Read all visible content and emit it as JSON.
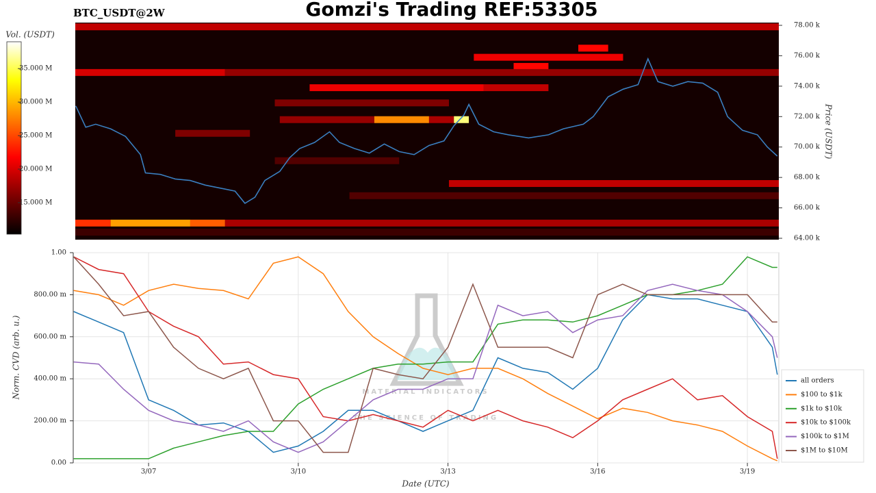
{
  "chart_data": [
    {
      "type": "heatmap",
      "title": "Gomzi's Trading REF:53305",
      "subtitle": "BTC_USDT@2W",
      "ylabel": "Price (USDT)",
      "colorbar_label": "Vol. (USDT)",
      "colormap": "hot",
      "xlim": [
        5.49,
        19.63
      ],
      "ylim": [
        63910,
        78180
      ],
      "yticks": [
        {
          "value": 64000,
          "label": "64.00 k"
        },
        {
          "value": 66000,
          "label": "66.00 k"
        },
        {
          "value": 68000,
          "label": "68.00 k"
        },
        {
          "value": 70000,
          "label": "70.00 k"
        },
        {
          "value": 72000,
          "label": "72.00 k"
        },
        {
          "value": 74000,
          "label": "74.00 k"
        },
        {
          "value": 76000,
          "label": "76.00 k"
        },
        {
          "value": 78000,
          "label": "78.00 k"
        }
      ],
      "clim": [
        10300000,
        39000000
      ],
      "cticks": [
        {
          "value": 15000000,
          "label": "15.000 M"
        },
        {
          "value": 20000000,
          "label": "20.000 M"
        },
        {
          "value": 25000000,
          "label": "25.000 M"
        },
        {
          "value": 30000000,
          "label": "30.000 M"
        },
        {
          "value": 35000000,
          "label": "35.000 M"
        }
      ],
      "bands": [
        {
          "price": 77900,
          "x0": 5.49,
          "x1": 19.63,
          "volume": 19000000
        },
        {
          "price": 76500,
          "x0": 15.6,
          "x1": 16.2,
          "volume": 22000000
        },
        {
          "price": 75900,
          "x0": 13.5,
          "x1": 16.5,
          "volume": 21000000
        },
        {
          "price": 75300,
          "x0": 14.3,
          "x1": 15.0,
          "volume": 22000000
        },
        {
          "price": 74900,
          "x0": 5.49,
          "x1": 8.5,
          "volume": 20000000
        },
        {
          "price": 74900,
          "x0": 8.5,
          "x1": 19.63,
          "volume": 17000000
        },
        {
          "price": 73900,
          "x0": 10.2,
          "x1": 13.7,
          "volume": 21000000
        },
        {
          "price": 73900,
          "x0": 13.7,
          "x1": 15.0,
          "volume": 19000000
        },
        {
          "price": 72900,
          "x0": 9.5,
          "x1": 13.0,
          "volume": 16000000
        },
        {
          "price": 71800,
          "x0": 9.6,
          "x1": 11.5,
          "volume": 17000000
        },
        {
          "price": 71800,
          "x0": 11.5,
          "x1": 12.6,
          "volume": 28000000
        },
        {
          "price": 71800,
          "x0": 12.6,
          "x1": 13.1,
          "volume": 18000000
        },
        {
          "price": 71800,
          "x0": 13.1,
          "x1": 13.4,
          "volume": 36000000
        },
        {
          "price": 70900,
          "x0": 7.5,
          "x1": 9.0,
          "volume": 16000000
        },
        {
          "price": 69100,
          "x0": 9.5,
          "x1": 12.0,
          "volume": 14000000
        },
        {
          "price": 67600,
          "x0": 13.0,
          "x1": 19.63,
          "volume": 19000000
        },
        {
          "price": 66800,
          "x0": 11.0,
          "x1": 19.63,
          "volume": 14000000
        },
        {
          "price": 65000,
          "x0": 5.49,
          "x1": 6.2,
          "volume": 24000000
        },
        {
          "price": 65000,
          "x0": 6.2,
          "x1": 7.8,
          "volume": 29000000
        },
        {
          "price": 65000,
          "x0": 7.8,
          "x1": 8.5,
          "volume": 26000000
        },
        {
          "price": 65000,
          "x0": 8.5,
          "x1": 19.63,
          "volume": 18000000
        },
        {
          "price": 64400,
          "x0": 5.49,
          "x1": 19.63,
          "volume": 13000000
        }
      ],
      "price": {
        "color": "#3a7fc0",
        "x": [
          5.5,
          5.7,
          5.9,
          6.2,
          6.5,
          6.8,
          6.9,
          7.2,
          7.5,
          7.8,
          8.1,
          8.4,
          8.7,
          8.9,
          9.1,
          9.3,
          9.6,
          9.8,
          10.0,
          10.3,
          10.6,
          10.8,
          11.1,
          11.4,
          11.7,
          12.0,
          12.3,
          12.6,
          12.9,
          13.1,
          13.3,
          13.4,
          13.6,
          13.9,
          14.2,
          14.6,
          15.0,
          15.3,
          15.7,
          15.9,
          16.2,
          16.5,
          16.8,
          17.0,
          17.2,
          17.5,
          17.8,
          18.1,
          18.4,
          18.6,
          18.9,
          19.2,
          19.4,
          19.6
        ],
        "values": [
          72700,
          71300,
          71500,
          71200,
          70700,
          69500,
          68300,
          68200,
          67900,
          67800,
          67500,
          67300,
          67100,
          66300,
          66700,
          67800,
          68400,
          69300,
          69900,
          70300,
          71000,
          70300,
          69900,
          69600,
          70200,
          69700,
          69500,
          70100,
          70400,
          71400,
          72100,
          72800,
          71500,
          71000,
          70800,
          70600,
          70800,
          71200,
          71500,
          72000,
          73300,
          73800,
          74100,
          75800,
          74300,
          74000,
          74300,
          74200,
          73600,
          72000,
          71100,
          70800,
          70000,
          69400
        ]
      }
    },
    {
      "type": "line",
      "xlabel": "Date (UTC)",
      "ylabel": "Norm. CVD (arb. u.)",
      "xlim": [
        5.49,
        19.63
      ],
      "ylim": [
        0,
        1.0
      ],
      "xticks": [
        {
          "value": 7,
          "label": "3/07"
        },
        {
          "value": 10,
          "label": "3/10"
        },
        {
          "value": 13,
          "label": "3/13"
        },
        {
          "value": 16,
          "label": "3/16"
        },
        {
          "value": 19,
          "label": "3/19"
        }
      ],
      "yticks": [
        {
          "value": 0,
          "label": "0.00"
        },
        {
          "value": 0.2,
          "label": "200.00 m"
        },
        {
          "value": 0.4,
          "label": "400.00 m"
        },
        {
          "value": 0.6,
          "label": "600.00 m"
        },
        {
          "value": 0.8,
          "label": "800.00 m"
        },
        {
          "value": 1.0,
          "label": "1.00"
        }
      ],
      "grid": true,
      "legend": "right",
      "annotations": [
        "MATERIAL INDICATORS",
        "THE SCIENCE OF TRADING"
      ],
      "x": [
        5.5,
        6.0,
        6.5,
        7.0,
        7.5,
        8.0,
        8.5,
        9.0,
        9.5,
        10.0,
        10.5,
        11.0,
        11.5,
        12.0,
        12.5,
        13.0,
        13.5,
        14.0,
        14.5,
        15.0,
        15.5,
        16.0,
        16.5,
        17.0,
        17.5,
        18.0,
        18.5,
        19.0,
        19.5,
        19.6
      ],
      "series": [
        {
          "name": "all orders",
          "color": "#1f77b4",
          "values": [
            0.72,
            0.67,
            0.62,
            0.3,
            0.25,
            0.18,
            0.19,
            0.15,
            0.05,
            0.08,
            0.15,
            0.25,
            0.25,
            0.2,
            0.15,
            0.2,
            0.25,
            0.5,
            0.45,
            0.43,
            0.35,
            0.45,
            0.68,
            0.8,
            0.78,
            0.78,
            0.75,
            0.72,
            0.55,
            0.42
          ]
        },
        {
          "name": "$100 to $1k",
          "color": "#ff7f0e",
          "values": [
            0.82,
            0.8,
            0.75,
            0.82,
            0.85,
            0.83,
            0.82,
            0.78,
            0.95,
            0.98,
            0.9,
            0.72,
            0.6,
            0.52,
            0.45,
            0.42,
            0.45,
            0.45,
            0.4,
            0.33,
            0.27,
            0.21,
            0.26,
            0.24,
            0.2,
            0.18,
            0.15,
            0.08,
            0.02,
            0.01
          ]
        },
        {
          "name": "$1k to $10k",
          "color": "#2ca02c",
          "values": [
            0.02,
            0.02,
            0.02,
            0.02,
            0.07,
            0.1,
            0.13,
            0.15,
            0.15,
            0.28,
            0.35,
            0.4,
            0.45,
            0.47,
            0.47,
            0.48,
            0.48,
            0.66,
            0.68,
            0.68,
            0.67,
            0.7,
            0.75,
            0.8,
            0.8,
            0.82,
            0.85,
            0.98,
            0.93,
            0.93
          ]
        },
        {
          "name": "$10k to $100k",
          "color": "#d62728",
          "values": [
            0.98,
            0.92,
            0.9,
            0.72,
            0.65,
            0.6,
            0.47,
            0.48,
            0.42,
            0.4,
            0.22,
            0.2,
            0.23,
            0.2,
            0.17,
            0.25,
            0.2,
            0.25,
            0.2,
            0.17,
            0.12,
            0.2,
            0.3,
            0.35,
            0.4,
            0.3,
            0.32,
            0.22,
            0.15,
            0.02
          ]
        },
        {
          "name": "$100k to $1M",
          "color": "#9467bd",
          "values": [
            0.48,
            0.47,
            0.35,
            0.25,
            0.2,
            0.18,
            0.15,
            0.2,
            0.1,
            0.05,
            0.1,
            0.2,
            0.3,
            0.35,
            0.35,
            0.4,
            0.4,
            0.75,
            0.7,
            0.72,
            0.62,
            0.68,
            0.7,
            0.82,
            0.85,
            0.82,
            0.8,
            0.72,
            0.6,
            0.5
          ]
        },
        {
          "name": "$1M to $10M",
          "color": "#8c564b",
          "values": [
            0.98,
            0.85,
            0.7,
            0.72,
            0.55,
            0.45,
            0.4,
            0.45,
            0.2,
            0.2,
            0.05,
            0.05,
            0.45,
            0.42,
            0.4,
            0.55,
            0.85,
            0.55,
            0.55,
            0.55,
            0.5,
            0.8,
            0.85,
            0.8,
            0.8,
            0.8,
            0.8,
            0.8,
            0.67,
            0.67
          ]
        }
      ]
    }
  ]
}
